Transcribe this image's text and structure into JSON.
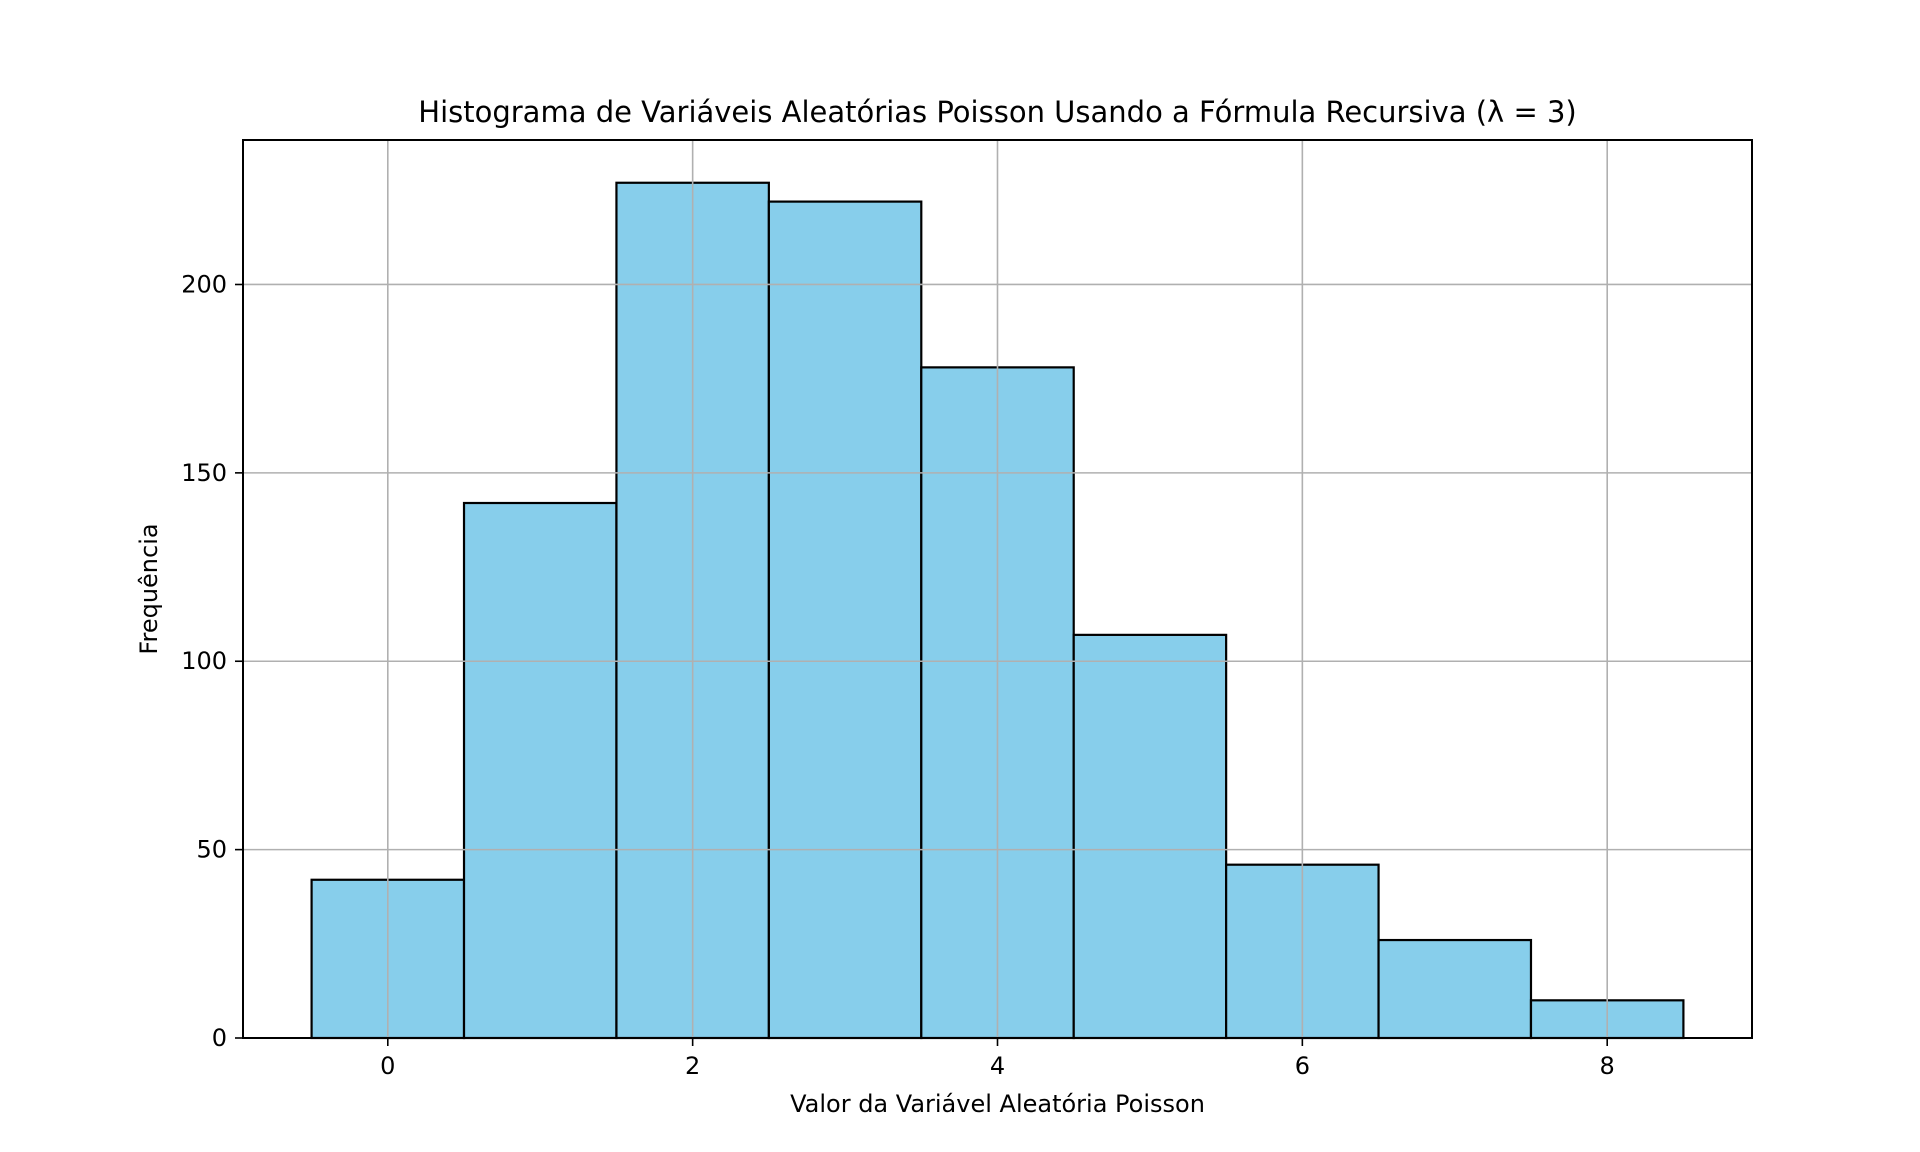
{
  "chart_data": {
    "type": "bar",
    "title": "Histograma de Variáveis Aleatórias Poisson Usando a Fórmula Recursiva (λ = 3)",
    "xlabel": "Valor da Variável Aleatória Poisson",
    "ylabel": "Frequência",
    "bins": [
      {
        "x": 0,
        "value": 42
      },
      {
        "x": 1,
        "value": 142
      },
      {
        "x": 2,
        "value": 227
      },
      {
        "x": 3,
        "value": 222
      },
      {
        "x": 4,
        "value": 178
      },
      {
        "x": 5,
        "value": 107
      },
      {
        "x": 6,
        "value": 46
      },
      {
        "x": 7,
        "value": 26
      },
      {
        "x": 8,
        "value": 10
      }
    ],
    "bin_width": 1,
    "xlim": [
      -0.95,
      8.95
    ],
    "ylim": [
      0,
      238.35
    ],
    "xticks": [
      0,
      2,
      4,
      6,
      8
    ],
    "yticks": [
      0,
      50,
      100,
      150,
      200
    ],
    "grid": true,
    "colors": {
      "bar_fill": "#87ceeb",
      "bar_edge": "#000000",
      "grid": "#b0b0b0"
    }
  }
}
